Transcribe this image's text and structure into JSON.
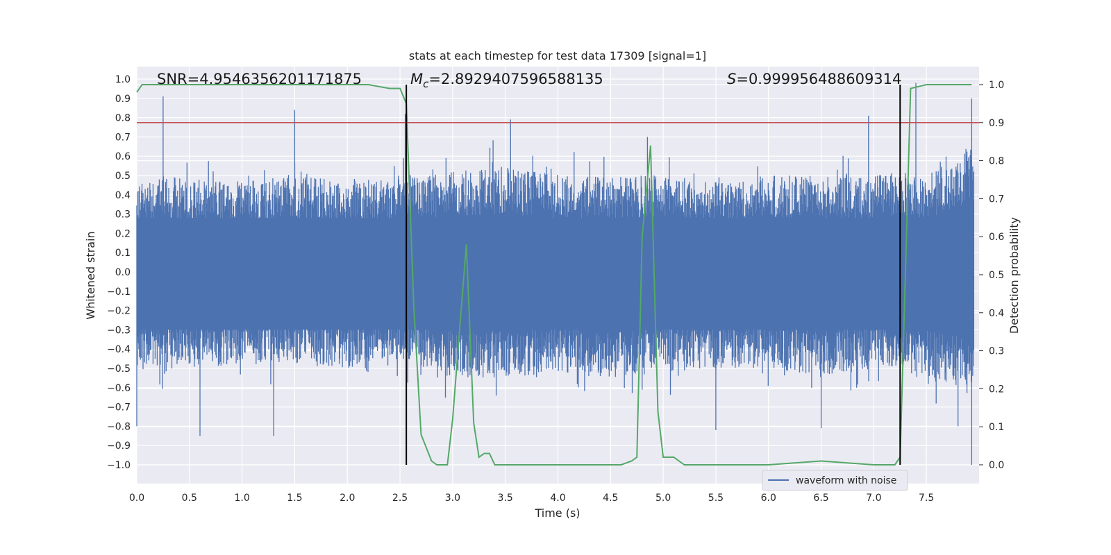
{
  "chart_data": {
    "type": "line",
    "title": "stats at each timestep for test data 17309 [signal=1]",
    "xlabel": "Time (s)",
    "ylabel": "Whitened strain",
    "y2label": "Detection probability",
    "xlim": [
      0.0,
      8.0
    ],
    "ylim": [
      -1.1,
      1.1
    ],
    "y2lim": [
      -0.05,
      1.05
    ],
    "grid": true,
    "x_ticks": [
      0.0,
      0.5,
      1.0,
      1.5,
      2.0,
      2.5,
      3.0,
      3.5,
      4.0,
      4.5,
      5.0,
      5.5,
      6.0,
      6.5,
      7.0,
      7.5
    ],
    "x_tick_labels": [
      "0.0",
      "0.5",
      "1.0",
      "1.5",
      "2.0",
      "2.5",
      "3.0",
      "3.5",
      "4.0",
      "4.5",
      "5.0",
      "5.5",
      "6.0",
      "6.5",
      "7.0",
      "7.5"
    ],
    "y_ticks": [
      1.0,
      0.9,
      0.8,
      0.7,
      0.6,
      0.5,
      0.4,
      0.3,
      0.2,
      0.1,
      0.0,
      -0.1,
      -0.2,
      -0.3,
      -0.4,
      -0.5,
      -0.6,
      -0.7,
      -0.8,
      -0.9,
      -1.0
    ],
    "y_tick_labels": [
      "1.0",
      "0.9",
      "0.8",
      "0.7",
      "0.6",
      "0.5",
      "0.4",
      "0.3",
      "0.2",
      "0.1",
      "0.0",
      "−0.1",
      "−0.2",
      "−0.3",
      "−0.4",
      "−0.5",
      "−0.6",
      "−0.7",
      "−0.8",
      "−0.9",
      "−1.0"
    ],
    "y2_ticks": [
      1.0,
      0.9,
      0.8,
      0.7,
      0.6,
      0.5,
      0.4,
      0.3,
      0.2,
      0.1,
      0.0
    ],
    "y2_tick_labels": [
      "1.0",
      "0.9",
      "0.8",
      "0.7",
      "0.6",
      "0.5",
      "0.4",
      "0.3",
      "0.2",
      "0.1",
      "0.0"
    ],
    "annotations": {
      "snr": "SNR=4.9546356201171875",
      "mc_symbol": "M",
      "mc_sub": "c",
      "mc_value": "=2.8929407596588135",
      "s_symbol": "S",
      "s_value": "=0.999956488609314"
    },
    "threshold": {
      "value": 0.9,
      "axis": "y2",
      "color": "#c44e52"
    },
    "vertical_lines": [
      {
        "x": 2.56,
        "color": "#000000"
      },
      {
        "x": 7.25,
        "color": "#000000"
      }
    ],
    "waveform_envelope": {
      "name": "waveform with noise",
      "color": "#4c72b0",
      "x": [
        0.0,
        0.25,
        0.5,
        1.0,
        1.5,
        2.0,
        2.5,
        3.0,
        3.5,
        4.0,
        4.5,
        5.0,
        5.5,
        6.0,
        6.5,
        7.0,
        7.25,
        7.5,
        7.8,
        7.93
      ],
      "upper": [
        0.45,
        0.5,
        0.48,
        0.47,
        0.5,
        0.47,
        0.5,
        0.52,
        0.55,
        0.5,
        0.5,
        0.5,
        0.47,
        0.5,
        0.5,
        0.5,
        0.52,
        0.5,
        0.6,
        0.65
      ],
      "lower": [
        -0.5,
        -0.48,
        -0.5,
        -0.48,
        -0.47,
        -0.5,
        -0.45,
        -0.55,
        -0.55,
        -0.52,
        -0.55,
        -0.52,
        -0.5,
        -0.5,
        -0.55,
        -0.5,
        -0.52,
        -0.55,
        -0.6,
        -0.65
      ],
      "peaks": [
        {
          "x": 0.25,
          "y": 0.91
        },
        {
          "x": 1.5,
          "y": 0.84
        },
        {
          "x": 2.55,
          "y": 0.82
        },
        {
          "x": 3.55,
          "y": 0.79
        },
        {
          "x": 4.85,
          "y": 0.7
        },
        {
          "x": 6.95,
          "y": 0.81
        },
        {
          "x": 7.4,
          "y": 0.98
        },
        {
          "x": 7.93,
          "y": 0.9
        },
        {
          "x": 0.6,
          "y": -0.85
        },
        {
          "x": 1.3,
          "y": -0.85
        },
        {
          "x": 0.0,
          "y": -0.8
        },
        {
          "x": 5.5,
          "y": -0.82
        },
        {
          "x": 6.5,
          "y": -0.81
        },
        {
          "x": 7.93,
          "y": -1.0
        },
        {
          "x": 7.8,
          "y": -0.8
        }
      ]
    },
    "probability": {
      "color": "#55a868",
      "x": [
        0.0,
        0.05,
        0.5,
        1.0,
        1.5,
        2.0,
        2.2,
        2.4,
        2.5,
        2.56,
        2.63,
        2.7,
        2.8,
        2.85,
        2.95,
        3.0,
        3.05,
        3.13,
        3.2,
        3.25,
        3.3,
        3.35,
        3.4,
        3.5,
        3.6,
        4.0,
        4.3,
        4.6,
        4.7,
        4.75,
        4.8,
        4.88,
        4.95,
        5.0,
        5.1,
        5.2,
        5.5,
        6.0,
        6.5,
        7.0,
        7.2,
        7.25,
        7.3,
        7.35,
        7.5,
        7.93
      ],
      "y": [
        0.98,
        1.0,
        1.0,
        1.0,
        1.0,
        1.0,
        1.0,
        0.99,
        0.99,
        0.95,
        0.42,
        0.08,
        0.01,
        0.0,
        0.0,
        0.12,
        0.3,
        0.58,
        0.11,
        0.02,
        0.03,
        0.03,
        0.0,
        0.0,
        0.0,
        0.0,
        0.0,
        0.0,
        0.01,
        0.02,
        0.6,
        0.84,
        0.14,
        0.02,
        0.02,
        0.0,
        0.0,
        0.0,
        0.01,
        0.0,
        0.0,
        0.02,
        0.5,
        0.99,
        1.0,
        1.0
      ]
    },
    "legend": {
      "placement": "bottom-right",
      "entries": [
        "waveform with noise"
      ]
    },
    "colors": {
      "plot_bg": "#eaeaf2",
      "grid": "#ffffff"
    }
  }
}
